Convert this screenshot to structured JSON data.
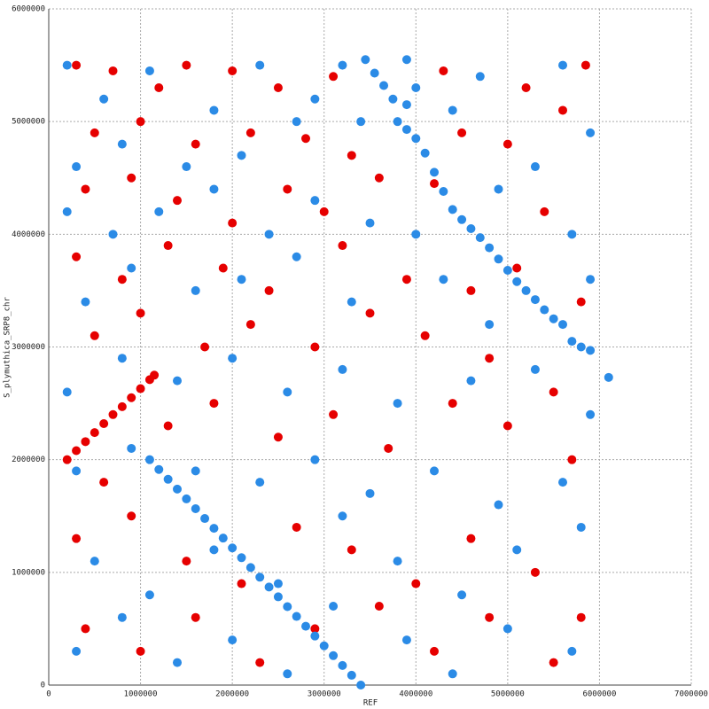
{
  "chart_data": {
    "type": "scatter",
    "xlabel": "REF",
    "ylabel": "S_plymuthica_SRP8_chr",
    "xlim": [
      0,
      7000000
    ],
    "ylim": [
      0,
      6000000
    ],
    "xticks": [
      0,
      1000000,
      2000000,
      3000000,
      4000000,
      5000000,
      6000000,
      7000000
    ],
    "yticks": [
      0,
      1000000,
      2000000,
      3000000,
      4000000,
      5000000,
      6000000
    ],
    "grid": true,
    "series": [
      {
        "color": "#e60000",
        "x": [
          200000,
          300000,
          400000,
          500000,
          600000,
          700000,
          800000,
          900000,
          1000000,
          1100000,
          1150000,
          300000,
          700000,
          1200000,
          1500000,
          2000000,
          2500000,
          3100000,
          4300000,
          5200000,
          5850000,
          500000,
          1000000,
          1600000,
          2200000,
          2800000,
          3300000,
          4500000,
          5000000,
          5600000,
          400000,
          900000,
          1400000,
          2000000,
          2600000,
          3000000,
          3600000,
          4200000,
          5400000,
          300000,
          800000,
          1300000,
          1900000,
          2400000,
          3200000,
          3900000,
          4600000,
          5100000,
          5800000,
          500000,
          1000000,
          1700000,
          2200000,
          2900000,
          3500000,
          4100000,
          4800000,
          5500000,
          600000,
          1300000,
          1800000,
          2500000,
          3100000,
          3700000,
          4400000,
          5000000,
          5700000,
          300000,
          900000,
          1500000,
          2100000,
          2700000,
          3300000,
          4000000,
          4600000,
          5300000,
          5800000,
          400000,
          1000000,
          1600000,
          2300000,
          2900000,
          3600000,
          4200000,
          4800000,
          5500000
        ],
        "values": [
          2000000,
          2080000,
          2160000,
          2240000,
          2320000,
          2400000,
          2470000,
          2550000,
          2630000,
          2710000,
          2750000,
          5500000,
          5450000,
          5300000,
          5500000,
          5450000,
          5300000,
          5400000,
          5450000,
          5300000,
          5500000,
          4900000,
          5000000,
          4800000,
          4900000,
          4850000,
          4700000,
          4900000,
          4800000,
          5100000,
          4400000,
          4500000,
          4300000,
          4100000,
          4400000,
          4200000,
          4500000,
          4450000,
          4200000,
          3800000,
          3600000,
          3900000,
          3700000,
          3500000,
          3900000,
          3600000,
          3500000,
          3700000,
          3400000,
          3100000,
          3300000,
          3000000,
          3200000,
          3000000,
          3300000,
          3100000,
          2900000,
          2600000,
          1800000,
          2300000,
          2500000,
          2200000,
          2400000,
          2100000,
          2500000,
          2300000,
          2000000,
          1300000,
          1500000,
          1100000,
          900000,
          1400000,
          1200000,
          900000,
          1300000,
          1000000,
          600000,
          500000,
          300000,
          600000,
          200000,
          500000,
          700000,
          300000,
          600000,
          200000
        ]
      },
      {
        "color": "#2b8be6",
        "x": [
          1100000,
          1200000,
          1300000,
          1400000,
          1500000,
          1600000,
          1700000,
          1800000,
          1900000,
          2000000,
          2100000,
          2200000,
          2300000,
          2400000,
          2500000,
          2600000,
          2700000,
          2800000,
          2900000,
          3000000,
          3100000,
          3200000,
          3300000,
          3400000,
          3450000,
          3550000,
          3650000,
          3750000,
          3800000,
          3900000,
          4000000,
          4100000,
          4200000,
          4300000,
          4400000,
          4500000,
          4600000,
          4700000,
          4800000,
          4900000,
          5000000,
          5100000,
          5200000,
          5300000,
          5400000,
          5500000,
          5600000,
          5700000,
          5800000,
          5900000,
          3900000,
          4000000,
          6100000,
          200000,
          600000,
          1100000,
          1800000,
          2300000,
          2900000,
          3200000,
          3900000,
          4700000,
          5600000,
          300000,
          800000,
          1500000,
          2100000,
          2700000,
          3400000,
          4400000,
          5300000,
          5900000,
          200000,
          700000,
          1200000,
          1800000,
          2400000,
          2900000,
          3500000,
          4000000,
          4900000,
          5700000,
          400000,
          900000,
          1600000,
          2100000,
          2700000,
          3300000,
          4300000,
          4800000,
          5900000,
          200000,
          800000,
          1400000,
          2000000,
          2600000,
          3200000,
          3800000,
          4600000,
          5300000,
          5900000,
          300000,
          900000,
          1600000,
          2300000,
          2900000,
          3500000,
          4200000,
          4900000,
          5600000,
          500000,
          1100000,
          1800000,
          2500000,
          3200000,
          3800000,
          4500000,
          5100000,
          5800000,
          300000,
          800000,
          1400000,
          2000000,
          2600000,
          3100000,
          3900000,
          4400000,
          5000000,
          5700000
        ],
        "values": [
          2000000,
          1913000,
          1826000,
          1739000,
          1652000,
          1565000,
          1478000,
          1391000,
          1304000,
          1217000,
          1130000,
          1043000,
          957000,
          870000,
          783000,
          696000,
          609000,
          522000,
          435000,
          348000,
          261000,
          174000,
          87000,
          0,
          5550000,
          5430000,
          5320000,
          5200000,
          5000000,
          4930000,
          4850000,
          4720000,
          4550000,
          4380000,
          4220000,
          4130000,
          4050000,
          3970000,
          3880000,
          3780000,
          3680000,
          3580000,
          3500000,
          3420000,
          3330000,
          3250000,
          3200000,
          3050000,
          3000000,
          2970000,
          5150000,
          5300000,
          2730000,
          5500000,
          5200000,
          5450000,
          5100000,
          5500000,
          5200000,
          5500000,
          5550000,
          5400000,
          5500000,
          4600000,
          4800000,
          4600000,
          4700000,
          5000000,
          5000000,
          5100000,
          4600000,
          4900000,
          4200000,
          4000000,
          4200000,
          4400000,
          4000000,
          4300000,
          4100000,
          4000000,
          4400000,
          4000000,
          3400000,
          3700000,
          3500000,
          3600000,
          3800000,
          3400000,
          3600000,
          3200000,
          3600000,
          2600000,
          2900000,
          2700000,
          2900000,
          2600000,
          2800000,
          2500000,
          2700000,
          2800000,
          2400000,
          1900000,
          2100000,
          1900000,
          1800000,
          2000000,
          1700000,
          1900000,
          1600000,
          1800000,
          1100000,
          800000,
          1200000,
          900000,
          1500000,
          1100000,
          800000,
          1200000,
          1400000,
          300000,
          600000,
          200000,
          400000,
          100000,
          700000,
          400000,
          100000,
          500000,
          300000
        ]
      }
    ]
  }
}
